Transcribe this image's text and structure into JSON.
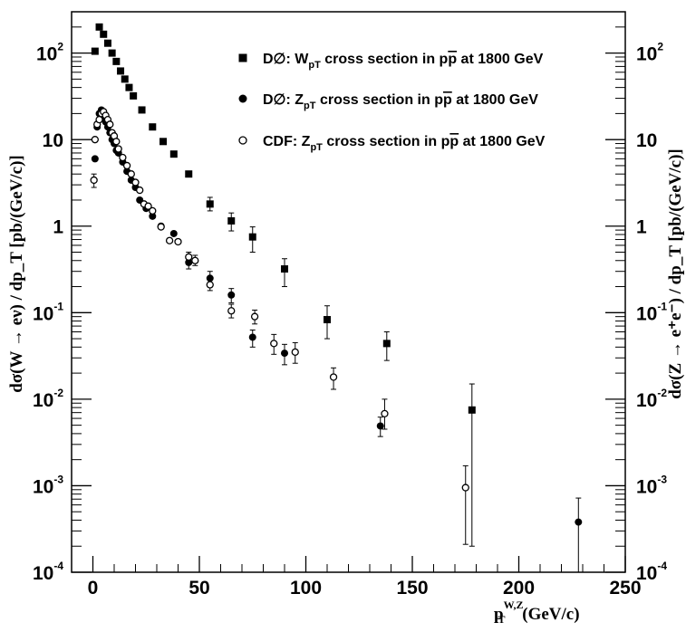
{
  "chart_data": {
    "type": "scatter",
    "x_axis": {
      "range": [
        -10,
        250
      ],
      "ticks": [
        0,
        50,
        100,
        150,
        200,
        250
      ],
      "tick_labels": [
        "0",
        "50",
        "100",
        "150",
        "200",
        "250"
      ],
      "label": {
        "main": "p",
        "sub": "T",
        "sup": "W,Z",
        "unit": " (GeV/c)"
      }
    },
    "y_axis": {
      "scale": "log",
      "range": [
        0.0001,
        300
      ],
      "ticks": [
        0.0001,
        0.001,
        0.01,
        0.1,
        1,
        10,
        100
      ],
      "tick_labels": [
        {
          "base": "10",
          "exp": "-4"
        },
        {
          "base": "10",
          "exp": "-3"
        },
        {
          "base": "10",
          "exp": "-2"
        },
        {
          "base": "10",
          "exp": "-1"
        },
        {
          "base": "1",
          "exp": ""
        },
        {
          "base": "10",
          "exp": ""
        },
        {
          "base": "10",
          "exp": "2"
        }
      ],
      "left_label": "dσ(W → eν) / dp_T [pb/(GeV/c)]",
      "right_label": "dσ(Z → e⁺e⁻) / dp_T [pb/(GeV/c)]"
    },
    "legend_position": "top-right",
    "series": [
      {
        "name": "DØ: W_pT cross section in pp̄ at 1800 GeV",
        "legend": {
          "pre": "D∅: W",
          "sub": "pT",
          "mid": " cross section in p",
          "pbar": "p",
          "post": " at 1800 GeV"
        },
        "marker": "square",
        "points": [
          {
            "x": 1,
            "y": 105
          },
          {
            "x": 3,
            "y": 200
          },
          {
            "x": 5,
            "y": 165
          },
          {
            "x": 7,
            "y": 130
          },
          {
            "x": 9,
            "y": 100
          },
          {
            "x": 11,
            "y": 80
          },
          {
            "x": 13,
            "y": 62
          },
          {
            "x": 15,
            "y": 50
          },
          {
            "x": 17,
            "y": 40
          },
          {
            "x": 19,
            "y": 32
          },
          {
            "x": 23,
            "y": 22
          },
          {
            "x": 28,
            "y": 14
          },
          {
            "x": 33,
            "y": 9.5
          },
          {
            "x": 38,
            "y": 6.8
          },
          {
            "x": 45,
            "y": 4
          },
          {
            "x": 55,
            "y": 1.8,
            "err": [
              1.5,
              2.15
            ]
          },
          {
            "x": 65,
            "y": 1.15,
            "err": [
              0.88,
              1.42
            ]
          },
          {
            "x": 75,
            "y": 0.75,
            "err": [
              0.5,
              0.98
            ]
          },
          {
            "x": 90,
            "y": 0.32,
            "err": [
              0.2,
              0.42
            ]
          },
          {
            "x": 110,
            "y": 0.083,
            "err": [
              0.05,
              0.12
            ]
          },
          {
            "x": 138,
            "y": 0.044,
            "err": [
              0.028,
              0.06
            ]
          },
          {
            "x": 178,
            "y": 0.0075,
            "err": [
              0.0002,
              0.015
            ]
          }
        ]
      },
      {
        "name": "DØ: Z_pT cross section in pp̄ at 1800 GeV",
        "legend": {
          "pre": "D∅: Z",
          "sub": "pT",
          "mid": " cross section in p",
          "pbar": "p",
          "post": " at 1800 GeV"
        },
        "marker": "filled-circle",
        "points": [
          {
            "x": 1,
            "y": 6
          },
          {
            "x": 2,
            "y": 14
          },
          {
            "x": 3,
            "y": 20
          },
          {
            "x": 4,
            "y": 22
          },
          {
            "x": 5,
            "y": 18
          },
          {
            "x": 6,
            "y": 16
          },
          {
            "x": 7,
            "y": 14
          },
          {
            "x": 8,
            "y": 12
          },
          {
            "x": 9,
            "y": 10
          },
          {
            "x": 10,
            "y": 9
          },
          {
            "x": 11,
            "y": 7.5
          },
          {
            "x": 12,
            "y": 7
          },
          {
            "x": 14,
            "y": 5.5
          },
          {
            "x": 16,
            "y": 4.3
          },
          {
            "x": 18,
            "y": 3.4
          },
          {
            "x": 20,
            "y": 2.8
          },
          {
            "x": 22,
            "y": 2
          },
          {
            "x": 25,
            "y": 1.6
          },
          {
            "x": 28,
            "y": 1.3
          },
          {
            "x": 32,
            "y": 1
          },
          {
            "x": 38,
            "y": 0.82
          },
          {
            "x": 45,
            "y": 0.38,
            "err": [
              0.32,
              0.45
            ]
          },
          {
            "x": 55,
            "y": 0.25,
            "err": [
              0.21,
              0.3
            ]
          },
          {
            "x": 65,
            "y": 0.16,
            "err": [
              0.13,
              0.19
            ]
          },
          {
            "x": 75,
            "y": 0.052,
            "err": [
              0.04,
              0.063
            ]
          },
          {
            "x": 90,
            "y": 0.034,
            "err": [
              0.025,
              0.043
            ]
          },
          {
            "x": 135,
            "y": 0.0049,
            "err": [
              0.0037,
              0.0062
            ]
          },
          {
            "x": 228,
            "y": 0.00038,
            "err": [
              0.0001,
              0.00072
            ]
          }
        ]
      },
      {
        "name": "CDF: Z_pT cross section in pp̄ at 1800 GeV",
        "legend": {
          "pre": "CDF: Z",
          "sub": "pT",
          "mid": " cross section in p",
          "pbar": "p",
          "post": " at 1800 GeV"
        },
        "marker": "open-circle",
        "points": [
          {
            "x": 0.5,
            "y": 3.4,
            "err": [
              2.8,
              4
            ]
          },
          {
            "x": 1,
            "y": 10
          },
          {
            "x": 2,
            "y": 15
          },
          {
            "x": 3,
            "y": 17
          },
          {
            "x": 4,
            "y": 20
          },
          {
            "x": 5,
            "y": 21
          },
          {
            "x": 6,
            "y": 19
          },
          {
            "x": 7,
            "y": 17
          },
          {
            "x": 8,
            "y": 15
          },
          {
            "x": 9,
            "y": 12
          },
          {
            "x": 10,
            "y": 11
          },
          {
            "x": 11,
            "y": 9.5
          },
          {
            "x": 12,
            "y": 7.8
          },
          {
            "x": 14,
            "y": 6.2
          },
          {
            "x": 16,
            "y": 5
          },
          {
            "x": 18,
            "y": 4
          },
          {
            "x": 20,
            "y": 3.2
          },
          {
            "x": 22,
            "y": 2.6
          },
          {
            "x": 24,
            "y": 1.8
          },
          {
            "x": 26,
            "y": 1.7
          },
          {
            "x": 28,
            "y": 1.5
          },
          {
            "x": 32,
            "y": 0.98
          },
          {
            "x": 36,
            "y": 0.68
          },
          {
            "x": 40,
            "y": 0.66
          },
          {
            "x": 45,
            "y": 0.44,
            "err": [
              0.38,
              0.5
            ]
          },
          {
            "x": 48,
            "y": 0.4,
            "err": [
              0.35,
              0.46
            ]
          },
          {
            "x": 55,
            "y": 0.21,
            "err": [
              0.18,
              0.24
            ]
          },
          {
            "x": 65,
            "y": 0.105,
            "err": [
              0.087,
              0.125
            ]
          },
          {
            "x": 76,
            "y": 0.09,
            "err": [
              0.074,
              0.107
            ]
          },
          {
            "x": 85,
            "y": 0.044,
            "err": [
              0.033,
              0.056
            ]
          },
          {
            "x": 95,
            "y": 0.035,
            "err": [
              0.026,
              0.045
            ]
          },
          {
            "x": 113,
            "y": 0.018,
            "err": [
              0.013,
              0.023
            ]
          },
          {
            "x": 137,
            "y": 0.0068,
            "err": [
              0.0045,
              0.01
            ]
          },
          {
            "x": 175,
            "y": 0.00095,
            "err": [
              0.00021,
              0.0017
            ]
          }
        ]
      }
    ]
  }
}
